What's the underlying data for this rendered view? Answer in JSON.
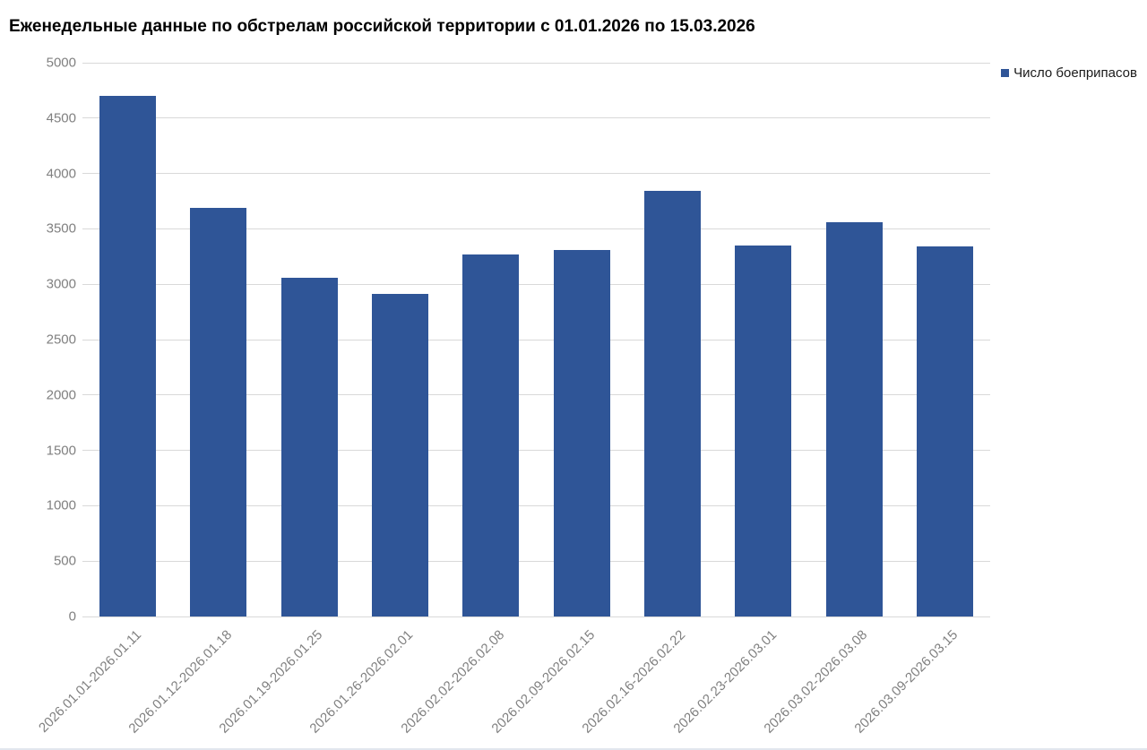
{
  "header": {
    "title": "Еженедельные данные по обстрелам российской территории с 01.01.2026 по 15.03.2026"
  },
  "legend": {
    "label": "Число боеприпасов",
    "swatch_color": "#2F5597"
  },
  "chart_data": {
    "type": "bar",
    "title": "Еженедельные данные по обстрелам российской территории с 01.01.2026 по 15.03.2026",
    "categories": [
      "2026.01.01-2026.01.11",
      "2026.01.12-2026.01.18",
      "2026.01.19-2026.01.25",
      "2026.01.26-2026.02.01",
      "2026.02.02-2026.02.08",
      "2026.02.09-2026.02.15",
      "2026.02.16-2026.02.22",
      "2026.02.23-2026.03.01",
      "2026.03.02-2026.03.08",
      "2026.03.09-2026.03.15"
    ],
    "series": [
      {
        "name": "Число боеприпасов",
        "color": "#2F5597",
        "values": [
          4700,
          3690,
          3055,
          2915,
          3265,
          3310,
          3840,
          3350,
          3560,
          3340
        ]
      }
    ],
    "xlabel": "",
    "ylabel": "",
    "ylim": [
      0,
      5000
    ],
    "ytick_step": 500,
    "grid": true,
    "legend_position": "top-right",
    "colors": {
      "grid": "#D9D9D9",
      "axis_label": "#808080",
      "title": "#000000",
      "background": "#FFFFFF"
    }
  }
}
